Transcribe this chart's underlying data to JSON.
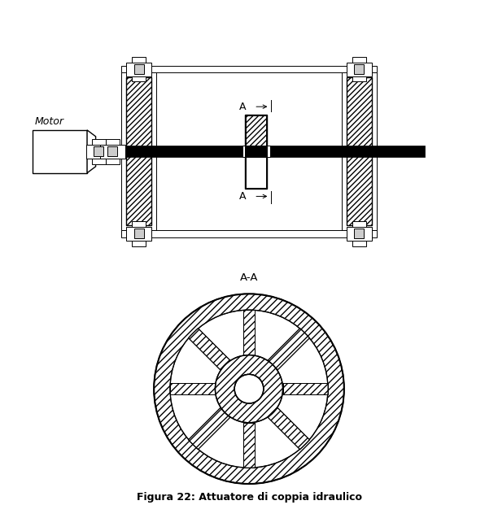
{
  "title": "Figura 22: Attuatore di coppia idraulico",
  "title_fontsize": 9,
  "bg_color": "#ffffff",
  "line_color": "#000000",
  "motor_label": "Motor",
  "section_label": "A-A",
  "cut_label": "A"
}
